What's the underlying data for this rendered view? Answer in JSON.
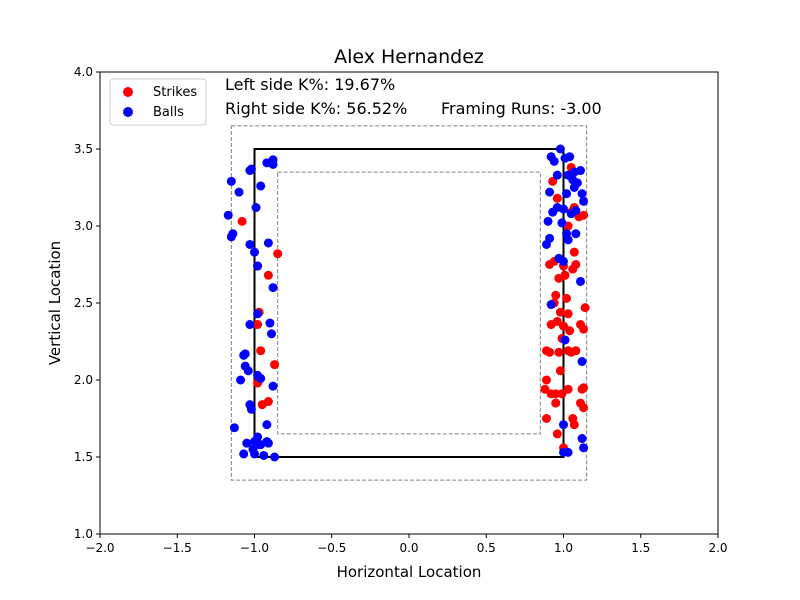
{
  "chart_data": {
    "type": "scatter",
    "title": "Alex Hernandez",
    "xlabel": "Horizontal Location",
    "ylabel": "Vertical Location",
    "xlim": [
      -2.0,
      2.0
    ],
    "ylim": [
      1.0,
      4.0
    ],
    "xticks": [
      -2.0,
      -1.5,
      -1.0,
      -0.5,
      0.0,
      0.5,
      1.0,
      1.5,
      2.0
    ],
    "xtick_labels": [
      "−2.0",
      "−1.5",
      "−1.0",
      "−0.5",
      "0.0",
      "0.5",
      "1.0",
      "1.5",
      "2.0"
    ],
    "yticks": [
      1.0,
      1.5,
      2.0,
      2.5,
      3.0,
      3.5,
      4.0
    ],
    "ytick_labels": [
      "1.0",
      "1.5",
      "2.0",
      "2.5",
      "3.0",
      "3.5",
      "4.0"
    ],
    "grid": false,
    "legend_position": "top-left",
    "annotations": {
      "left_k": "Left side K%: 19.67%",
      "right_k": "Right side K%: 56.52%",
      "framing": "Framing Runs: -3.00"
    },
    "zones": {
      "strike_zone": {
        "x": [
          -1.0,
          1.0
        ],
        "y": [
          1.5,
          3.5
        ],
        "color": "#000000"
      },
      "outer_zone": {
        "x": [
          -1.15,
          1.15
        ],
        "y": [
          1.35,
          3.65
        ],
        "color": "#808080"
      },
      "inner_zone": {
        "x": [
          -0.85,
          0.85
        ],
        "y": [
          1.65,
          3.35
        ],
        "color": "#808080"
      }
    },
    "series": [
      {
        "name": "Strikes",
        "color": "#ff0000",
        "points": [
          [
            -0.98,
            2.74
          ],
          [
            -0.91,
            2.68
          ],
          [
            -0.85,
            2.82
          ],
          [
            -0.97,
            2.44
          ],
          [
            -0.98,
            2.36
          ],
          [
            -0.96,
            2.19
          ],
          [
            -0.87,
            2.1
          ],
          [
            -0.98,
            1.98
          ],
          [
            -0.95,
            1.84
          ],
          [
            -0.91,
            1.86
          ],
          [
            -1.08,
            3.03
          ],
          [
            0.93,
            3.29
          ],
          [
            0.96,
            3.18
          ],
          [
            0.94,
            2.77
          ],
          [
            0.91,
            2.75
          ],
          [
            0.97,
            2.66
          ],
          [
            0.95,
            2.55
          ],
          [
            0.94,
            2.5
          ],
          [
            0.98,
            2.44
          ],
          [
            0.92,
            2.36
          ],
          [
            0.96,
            2.38
          ],
          [
            0.89,
            2.19
          ],
          [
            0.91,
            2.18
          ],
          [
            0.97,
            2.18
          ],
          [
            0.98,
            2.06
          ],
          [
            0.89,
            2.0
          ],
          [
            0.88,
            1.94
          ],
          [
            0.92,
            1.91
          ],
          [
            0.95,
            1.91
          ],
          [
            0.99,
            1.91
          ],
          [
            0.95,
            1.85
          ],
          [
            0.89,
            1.75
          ],
          [
            0.96,
            1.65
          ],
          [
            1.0,
            1.56
          ],
          [
            1.05,
            3.38
          ],
          [
            1.07,
            3.12
          ],
          [
            1.05,
            3.09
          ],
          [
            1.1,
            3.06
          ],
          [
            1.13,
            3.07
          ],
          [
            1.0,
            2.74
          ],
          [
            1.06,
            2.72
          ],
          [
            1.08,
            2.75
          ],
          [
            1.07,
            2.83
          ],
          [
            1.01,
            2.68
          ],
          [
            1.03,
            2.43
          ],
          [
            1.0,
            2.35
          ],
          [
            1.04,
            2.32
          ],
          [
            1.11,
            2.36
          ],
          [
            1.13,
            2.33
          ],
          [
            1.03,
            2.19
          ],
          [
            1.05,
            2.18
          ],
          [
            1.08,
            2.19
          ],
          [
            1.03,
            1.94
          ],
          [
            1.12,
            1.94
          ],
          [
            1.13,
            1.95
          ],
          [
            1.11,
            1.85
          ],
          [
            1.13,
            1.82
          ],
          [
            1.06,
            1.75
          ],
          [
            1.07,
            1.71
          ],
          [
            1.03,
            3.0
          ],
          [
            1.02,
            2.53
          ],
          [
            1.14,
            2.47
          ],
          [
            0.99,
            2.27
          ]
        ]
      },
      {
        "name": "Balls",
        "color": "#0000ff",
        "points": [
          [
            -1.15,
            3.29
          ],
          [
            -1.17,
            3.07
          ],
          [
            -1.14,
            2.95
          ],
          [
            -1.15,
            2.93
          ],
          [
            -1.1,
            3.22
          ],
          [
            -1.03,
            3.36
          ],
          [
            -1.02,
            3.37
          ],
          [
            -0.99,
            3.12
          ],
          [
            -0.96,
            3.26
          ],
          [
            -0.92,
            3.41
          ],
          [
            -0.88,
            3.43
          ],
          [
            -0.88,
            3.4
          ],
          [
            -0.91,
            2.89
          ],
          [
            -1.03,
            2.88
          ],
          [
            -1.0,
            2.83
          ],
          [
            -0.98,
            2.74
          ],
          [
            -0.88,
            2.6
          ],
          [
            -0.98,
            2.43
          ],
          [
            -1.03,
            2.36
          ],
          [
            -0.9,
            2.37
          ],
          [
            -0.89,
            2.3
          ],
          [
            -1.06,
            2.17
          ],
          [
            -1.07,
            2.16
          ],
          [
            -1.06,
            2.09
          ],
          [
            -1.04,
            2.06
          ],
          [
            -0.98,
            2.03
          ],
          [
            -0.96,
            2.01
          ],
          [
            -1.09,
            2.0
          ],
          [
            -0.88,
            1.96
          ],
          [
            -1.03,
            1.84
          ],
          [
            -1.02,
            1.81
          ],
          [
            -1.13,
            1.69
          ],
          [
            -0.92,
            1.71
          ],
          [
            -0.98,
            1.63
          ],
          [
            -1.0,
            1.6
          ],
          [
            -1.05,
            1.59
          ],
          [
            -0.91,
            1.59
          ],
          [
            -0.96,
            1.58
          ],
          [
            -1.01,
            1.55
          ],
          [
            -1.07,
            1.52
          ],
          [
            -1.0,
            1.52
          ],
          [
            -0.94,
            1.51
          ],
          [
            -0.87,
            1.5
          ],
          [
            -0.97,
            1.58
          ],
          [
            -0.92,
            1.6
          ],
          [
            0.92,
            3.45
          ],
          [
            0.94,
            3.42
          ],
          [
            0.96,
            3.33
          ],
          [
            0.91,
            3.22
          ],
          [
            0.93,
            3.09
          ],
          [
            0.9,
            3.03
          ],
          [
            0.91,
            2.92
          ],
          [
            0.89,
            2.88
          ],
          [
            0.97,
            2.79
          ],
          [
            0.92,
            2.49
          ],
          [
            0.98,
            3.5
          ],
          [
            1.01,
            3.44
          ],
          [
            1.04,
            3.45
          ],
          [
            1.03,
            3.33
          ],
          [
            1.07,
            3.35
          ],
          [
            1.11,
            3.36
          ],
          [
            1.07,
            3.25
          ],
          [
            1.09,
            3.28
          ],
          [
            1.12,
            3.21
          ],
          [
            1.13,
            3.16
          ],
          [
            1.0,
            3.11
          ],
          [
            1.05,
            3.08
          ],
          [
            1.08,
            3.1
          ],
          [
            0.99,
            3.02
          ],
          [
            1.02,
            2.95
          ],
          [
            1.08,
            2.95
          ],
          [
            1.03,
            2.91
          ],
          [
            1.0,
            2.77
          ],
          [
            1.11,
            2.64
          ],
          [
            1.01,
            2.26
          ],
          [
            1.12,
            2.12
          ],
          [
            1.0,
            1.71
          ],
          [
            1.12,
            1.62
          ],
          [
            1.13,
            1.56
          ],
          [
            1.0,
            1.53
          ],
          [
            1.03,
            1.53
          ],
          [
            1.02,
            3.21
          ],
          [
            1.06,
            3.3
          ],
          [
            0.96,
            3.12
          ]
        ]
      }
    ]
  }
}
